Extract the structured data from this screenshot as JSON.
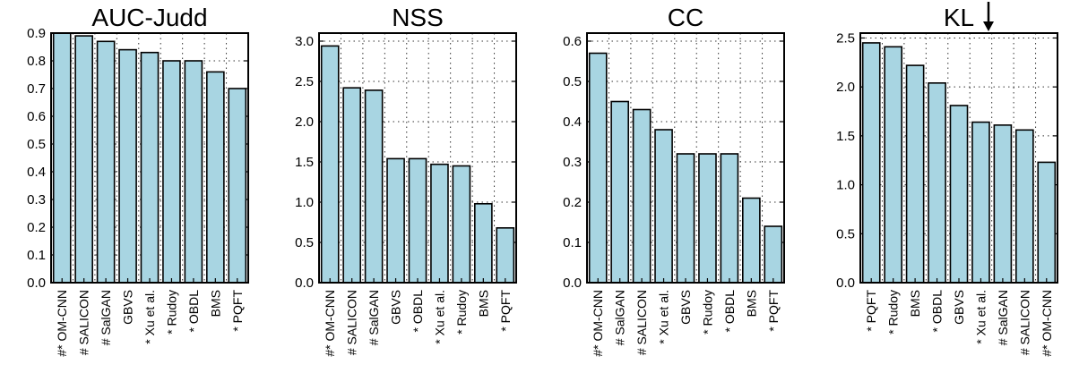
{
  "chart_data": [
    {
      "type": "bar",
      "title": "AUC-Judd",
      "categories": [
        "#* OM-CNN",
        "# SALICON",
        "# SalGAN",
        "GBVS",
        "* Xu et al.",
        "* Rudoy",
        "* OBDL",
        "BMS",
        "* PQFT"
      ],
      "values": [
        0.9,
        0.89,
        0.87,
        0.84,
        0.83,
        0.8,
        0.8,
        0.76,
        0.7
      ],
      "ylim": [
        0,
        0.9
      ],
      "yticks": [
        "0.0",
        "0.1",
        "0.2",
        "0.3",
        "0.4",
        "0.5",
        "0.6",
        "0.7",
        "0.8",
        "0.9"
      ],
      "grid": true,
      "bar_color": "#a8d5e2"
    },
    {
      "type": "bar",
      "title": "NSS",
      "categories": [
        "#* OM-CNN",
        "# SALICON",
        "# SalGAN",
        "GBVS",
        "* OBDL",
        "* Xu et al.",
        "* Rudoy",
        "BMS",
        "* PQFT"
      ],
      "values": [
        2.94,
        2.42,
        2.39,
        1.54,
        1.54,
        1.47,
        1.45,
        0.98,
        0.68
      ],
      "ylim": [
        0,
        3.1
      ],
      "yticks": [
        "0.0",
        "0.5",
        "1.0",
        "1.5",
        "2.0",
        "2.5",
        "3.0"
      ],
      "grid": true,
      "bar_color": "#a8d5e2"
    },
    {
      "type": "bar",
      "title": "CC",
      "categories": [
        "#* OM-CNN",
        "# SalGAN",
        "# SALICON",
        "* Xu et al.",
        "GBVS",
        "* Rudoy",
        "* OBDL",
        "BMS",
        "* PQFT"
      ],
      "values": [
        0.57,
        0.45,
        0.43,
        0.38,
        0.32,
        0.32,
        0.32,
        0.21,
        0.14
      ],
      "ylim": [
        0,
        0.62
      ],
      "yticks": [
        "0.0",
        "0.1",
        "0.2",
        "0.3",
        "0.4",
        "0.5",
        "0.6"
      ],
      "grid": true,
      "bar_color": "#a8d5e2"
    },
    {
      "type": "bar",
      "title": "KL",
      "title_arrow": "down",
      "categories": [
        "* PQFT",
        "* Rudoy",
        "BMS",
        "* OBDL",
        "GBVS",
        "* Xu et al.",
        "# SalGAN",
        "# SALICON",
        "#* OM-CNN"
      ],
      "values": [
        2.45,
        2.41,
        2.22,
        2.04,
        1.81,
        1.64,
        1.61,
        1.56,
        1.23
      ],
      "ylim": [
        0,
        2.55
      ],
      "yticks": [
        "0.0",
        "0.5",
        "1.0",
        "1.5",
        "2.0",
        "2.5"
      ],
      "grid": true,
      "bar_color": "#a8d5e2"
    }
  ]
}
